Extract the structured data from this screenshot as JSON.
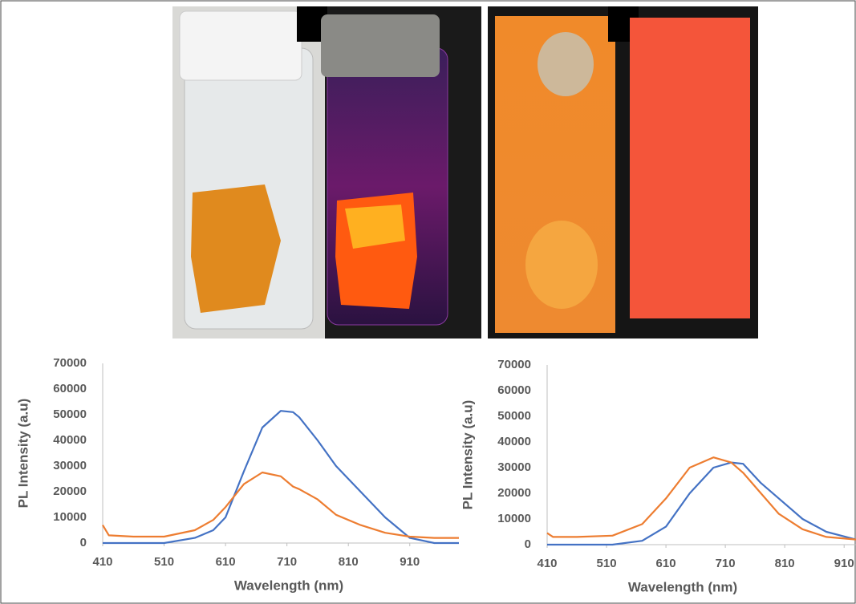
{
  "chart_data": [
    {
      "type": "line",
      "xlabel": "Wavelength (nm)",
      "ylabel": "PL Intensity (a.u)",
      "x": [
        410,
        420,
        460,
        510,
        560,
        590,
        610,
        640,
        670,
        700,
        720,
        730,
        760,
        790,
        830,
        870,
        910,
        950,
        990
      ],
      "series": [
        {
          "color": "#4472c4",
          "values": [
            0,
            0,
            0,
            0,
            2000,
            5000,
            10000,
            28000,
            45000,
            51500,
            51000,
            49000,
            40000,
            30000,
            20000,
            10000,
            2000,
            0,
            0
          ]
        },
        {
          "color": "#ed7d31",
          "values": [
            7000,
            3000,
            2500,
            2500,
            5000,
            9000,
            14000,
            23000,
            27500,
            26000,
            22000,
            21000,
            17000,
            11000,
            7000,
            4000,
            2500,
            2000,
            2000
          ]
        }
      ],
      "xlim": [
        410,
        990
      ],
      "ylim": [
        0,
        70000
      ],
      "xticks": [
        410,
        510,
        610,
        710,
        810,
        910
      ],
      "yticks": [
        0,
        10000,
        20000,
        30000,
        40000,
        50000,
        60000,
        70000
      ]
    },
    {
      "type": "line",
      "xlabel": "Wavelength (nm)",
      "ylabel": "PL Intensity (a.u)",
      "x": [
        410,
        420,
        460,
        520,
        570,
        610,
        650,
        690,
        720,
        740,
        770,
        800,
        840,
        880,
        930
      ],
      "series": [
        {
          "color": "#4472c4",
          "values": [
            0,
            0,
            0,
            0,
            1500,
            7000,
            20000,
            30000,
            32000,
            31500,
            24000,
            18000,
            10000,
            5000,
            2000
          ]
        },
        {
          "color": "#ed7d31",
          "values": [
            4500,
            3000,
            3000,
            3500,
            8000,
            18000,
            30000,
            34000,
            32000,
            28000,
            20000,
            12000,
            6000,
            3000,
            2000
          ]
        }
      ],
      "xlim": [
        410,
        930
      ],
      "ylim": [
        0,
        70000
      ],
      "xticks": [
        410,
        510,
        610,
        710,
        810,
        910
      ],
      "yticks": [
        0,
        10000,
        20000,
        30000,
        40000,
        50000,
        60000,
        70000
      ]
    }
  ]
}
